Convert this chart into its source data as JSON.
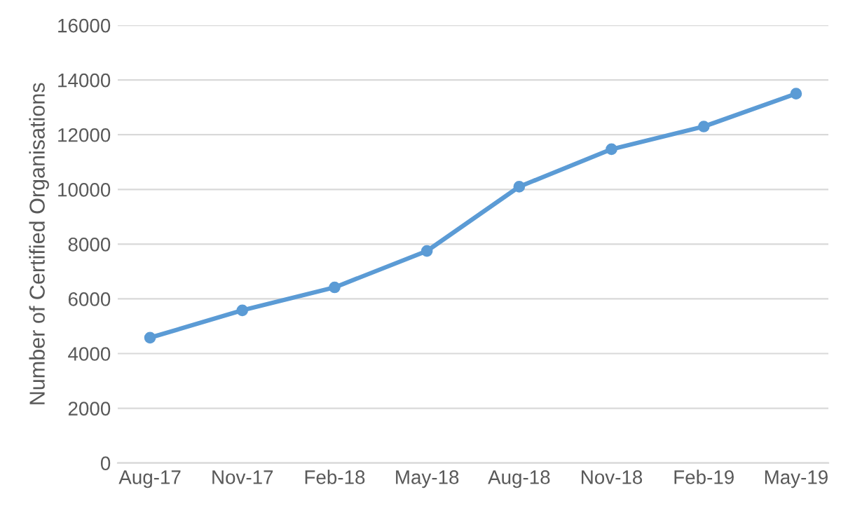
{
  "chart_data": {
    "type": "line",
    "ylabel": "Number of Certified Organisations",
    "categories": [
      "Aug-17",
      "Nov-17",
      "Feb-18",
      "May-18",
      "Aug-18",
      "Nov-18",
      "Feb-19",
      "May-19"
    ],
    "series": [
      {
        "color": "#5b9bd5",
        "values": [
          4580,
          5580,
          6420,
          7750,
          10100,
          11470,
          12300,
          13500
        ]
      }
    ],
    "ylim": [
      0,
      16000
    ],
    "yticks": [
      0,
      2000,
      4000,
      6000,
      8000,
      10000,
      12000,
      14000,
      16000
    ],
    "grid": "y",
    "marker": "circle",
    "line_style": "solid"
  }
}
